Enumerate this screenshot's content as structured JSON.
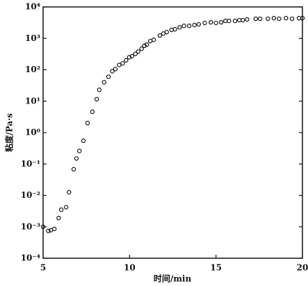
{
  "chart_data": {
    "type": "scatter",
    "x_label": "时间/min",
    "y_label": "粘度/Pa·s",
    "xlim": [
      5,
      20
    ],
    "xticks": [
      5,
      10,
      15,
      20
    ],
    "ylim": [
      0.0001,
      10000
    ],
    "ylog": true,
    "yticks": [
      {
        "value": 0.0001,
        "label": "10⁻⁴"
      },
      {
        "value": 0.001,
        "label": "10⁻³"
      },
      {
        "value": 0.01,
        "label": "10⁻²"
      },
      {
        "value": 0.1,
        "label": "10⁻¹"
      },
      {
        "value": 1,
        "label": "10⁰"
      },
      {
        "value": 10,
        "label": "10¹"
      },
      {
        "value": 100,
        "label": "10²"
      },
      {
        "value": 1000,
        "label": "10³"
      },
      {
        "value": 10000,
        "label": "10⁴"
      }
    ],
    "color": "#111111",
    "x": [
      5.0,
      5.3,
      5.45,
      5.65,
      5.9,
      6.05,
      6.33,
      6.5,
      6.77,
      6.93,
      7.1,
      7.33,
      7.57,
      7.85,
      8.1,
      8.25,
      8.53,
      8.78,
      9.0,
      9.18,
      9.4,
      9.6,
      9.8,
      9.98,
      10.14,
      10.34,
      10.5,
      10.7,
      10.86,
      11.0,
      11.2,
      11.4,
      11.75,
      11.95,
      12.15,
      12.43,
      12.63,
      12.9,
      13.15,
      13.45,
      13.75,
      14.0,
      14.35,
      14.7,
      15.0,
      15.3,
      15.55,
      15.75,
      16.1,
      16.35,
      16.55,
      16.8,
      17.3,
      17.55,
      18.0,
      18.35,
      18.65,
      19.05,
      19.4,
      19.8,
      20.0
    ],
    "values": [
      0.001,
      0.00074,
      0.00078,
      0.00086,
      0.0019,
      0.0035,
      0.0042,
      0.0126,
      0.068,
      0.15,
      0.26,
      0.55,
      2.0,
      4.6,
      11.5,
      23,
      40,
      60,
      90,
      105,
      142,
      160,
      200,
      250,
      270,
      320,
      380,
      470,
      580,
      630,
      820,
      900,
      1230,
      1420,
      1580,
      1860,
      1950,
      2250,
      2500,
      2500,
      2650,
      2800,
      3100,
      3250,
      3100,
      3250,
      3600,
      3600,
      3600,
      3800,
      3800,
      4000,
      4200,
      4200,
      4200,
      4400,
      4200,
      4400,
      4200,
      4400,
      4400
    ]
  }
}
